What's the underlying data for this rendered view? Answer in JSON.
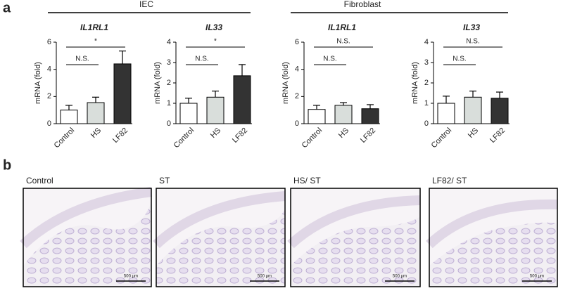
{
  "panel_labels": [
    "a",
    "b"
  ],
  "groups": [
    "IEC",
    "Fibroblast"
  ],
  "chart_data": [
    {
      "type": "bar",
      "title": "IL1RL1",
      "ylabel": "mRNA (fold)",
      "categories": [
        "Control",
        "HS",
        "LF82"
      ],
      "values": [
        1.0,
        1.55,
        4.4
      ],
      "errors": [
        0.35,
        0.4,
        0.95
      ],
      "colors": [
        "#ffffff",
        "#d9dedb",
        "#333333"
      ],
      "ylim": [
        0,
        6
      ],
      "yticks": [
        0,
        2,
        4,
        6
      ],
      "annotations": [
        {
          "text": "N.S.",
          "between": [
            "Control",
            "HS"
          ]
        },
        {
          "text": "*",
          "between": [
            "Control",
            "LF82"
          ]
        }
      ]
    },
    {
      "type": "bar",
      "title": "IL33",
      "ylabel": "mRNA (fold)",
      "categories": [
        "Control",
        "HS",
        "LF82"
      ],
      "values": [
        1.0,
        1.3,
        2.35
      ],
      "errors": [
        0.25,
        0.3,
        0.55
      ],
      "colors": [
        "#ffffff",
        "#d9dedb",
        "#333333"
      ],
      "ylim": [
        0,
        4
      ],
      "yticks": [
        0,
        1,
        2,
        3,
        4
      ],
      "annotations": [
        {
          "text": "N.S.",
          "between": [
            "Control",
            "HS"
          ]
        },
        {
          "text": "*",
          "between": [
            "Control",
            "LF82"
          ]
        }
      ]
    },
    {
      "type": "bar",
      "title": "IL1RL1",
      "ylabel": "mRNA (fold)",
      "categories": [
        "Control",
        "HS",
        "LF82"
      ],
      "values": [
        1.05,
        1.35,
        1.1
      ],
      "errors": [
        0.3,
        0.2,
        0.3
      ],
      "colors": [
        "#ffffff",
        "#d9dedb",
        "#333333"
      ],
      "ylim": [
        0,
        6
      ],
      "yticks": [
        0,
        2,
        4,
        6
      ],
      "annotations": [
        {
          "text": "N.S.",
          "between": [
            "Control",
            "HS"
          ]
        },
        {
          "text": "N.S.",
          "between": [
            "Control",
            "LF82"
          ]
        }
      ]
    },
    {
      "type": "bar",
      "title": "IL33",
      "ylabel": "mRNA (fold)",
      "categories": [
        "Control",
        "HS",
        "LF82"
      ],
      "values": [
        1.0,
        1.3,
        1.25
      ],
      "errors": [
        0.35,
        0.3,
        0.3
      ],
      "colors": [
        "#ffffff",
        "#d9dedb",
        "#333333"
      ],
      "ylim": [
        0,
        4
      ],
      "yticks": [
        0,
        1,
        2,
        3,
        4
      ],
      "annotations": [
        {
          "text": "N.S.",
          "between": [
            "Control",
            "HS"
          ]
        },
        {
          "text": "N.S.",
          "between": [
            "Control",
            "LF82"
          ]
        }
      ]
    }
  ],
  "images": [
    {
      "label": "Control",
      "scale_bar": "500 µm"
    },
    {
      "label": "ST",
      "scale_bar": "500 µm"
    },
    {
      "label": "HS/ ST",
      "scale_bar": "500 µm"
    },
    {
      "label": "LF82/ ST",
      "scale_bar": "500 µm"
    }
  ]
}
